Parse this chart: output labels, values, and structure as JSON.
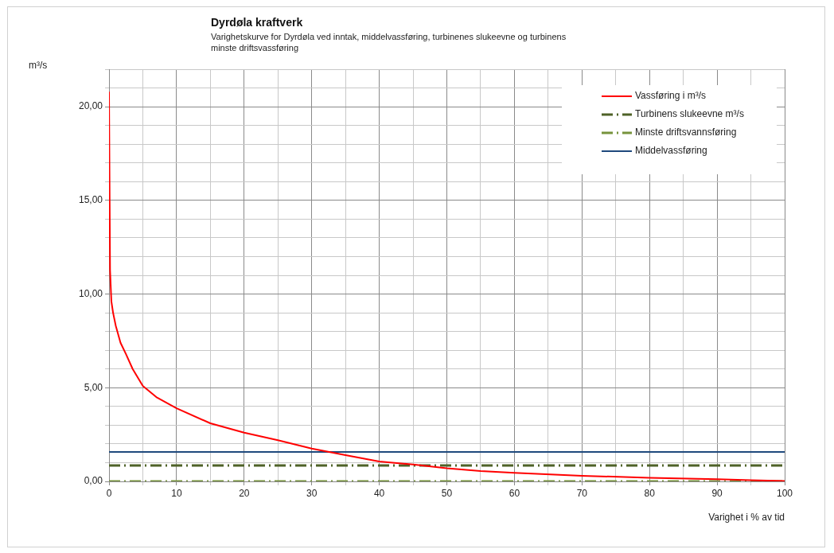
{
  "chart_data": {
    "type": "line",
    "title": "Dyrdøla kraftverk",
    "subtitle": "Varighetskurve for Dyrdøla ved inntak, middelvassføring, turbinenes slukeevne og turbinens minste driftsvassføring",
    "xlabel": "Varighet i % av tid",
    "ylabel": "m³/s",
    "xlim": [
      0,
      100
    ],
    "xticks": [
      0,
      {
        "value": 5,
        "label": null
      },
      10,
      {
        "value": 15,
        "label": null
      },
      20,
      {
        "value": 25,
        "label": null
      },
      30,
      {
        "value": 35,
        "label": null
      },
      40,
      {
        "value": 45,
        "label": null
      },
      50,
      {
        "value": 55,
        "label": null
      },
      60,
      {
        "value": 65,
        "label": null
      },
      70,
      {
        "value": 75,
        "label": null
      },
      80,
      {
        "value": 85,
        "label": null
      },
      90,
      {
        "value": 95,
        "label": null
      },
      100
    ],
    "ylim": [
      0,
      22
    ],
    "yticks": [
      {
        "value": 0,
        "label": "0,00"
      },
      {
        "value": 1,
        "label": null
      },
      {
        "value": 2,
        "label": null
      },
      {
        "value": 3,
        "label": null
      },
      {
        "value": 4,
        "label": null
      },
      {
        "value": 5,
        "label": "5,00"
      },
      {
        "value": 6,
        "label": null
      },
      {
        "value": 7,
        "label": null
      },
      {
        "value": 8,
        "label": null
      },
      {
        "value": 9,
        "label": null
      },
      {
        "value": 10,
        "label": "10,00"
      },
      {
        "value": 11,
        "label": null
      },
      {
        "value": 12,
        "label": null
      },
      {
        "value": 13,
        "label": null
      },
      {
        "value": 14,
        "label": null
      },
      {
        "value": 15,
        "label": "15,00"
      },
      {
        "value": 16,
        "label": null
      },
      {
        "value": 17,
        "label": null
      },
      {
        "value": 18,
        "label": null
      },
      {
        "value": 19,
        "label": null
      },
      {
        "value": 20,
        "label": "20,00"
      },
      {
        "value": 21,
        "label": null
      },
      {
        "value": 22,
        "label": null
      }
    ],
    "grid": true,
    "legend": "top right",
    "marker": "none",
    "series": [
      {
        "name": "Vassføring i m³/s",
        "color": "#ff0000",
        "line_style": "solid",
        "x": [
          0,
          0.15,
          0.35,
          0.6,
          1,
          1.7,
          2.5,
          3.5,
          5,
          7,
          10,
          15,
          20,
          25,
          30,
          35,
          40,
          45,
          50,
          55,
          60,
          70,
          80,
          90,
          95,
          100
        ],
        "values": [
          20.8,
          11.3,
          9.6,
          9,
          8.3,
          7.4,
          6.8,
          6.0,
          5.1,
          4.5,
          3.9,
          3.1,
          2.6,
          2.2,
          1.75,
          1.4,
          1.06,
          0.9,
          0.7,
          0.55,
          0.46,
          0.3,
          0.19,
          0.12,
          0.06,
          0.02
        ]
      },
      {
        "name": "Turbinens slukeevne m³/s",
        "color": "#4f6228",
        "line_style": "dashed",
        "x": [
          0,
          100
        ],
        "values": [
          0.85,
          0.85
        ]
      },
      {
        "name": "Minste driftsvannsføring",
        "color": "#77933c",
        "line_style": "dashed",
        "x": [
          0,
          100
        ],
        "values": [
          0,
          0
        ]
      },
      {
        "name": "Middelvassføring",
        "color": "#1f497d",
        "line_style": "solid",
        "x": [
          0,
          100
        ],
        "values": [
          1.57,
          1.57
        ]
      }
    ]
  }
}
